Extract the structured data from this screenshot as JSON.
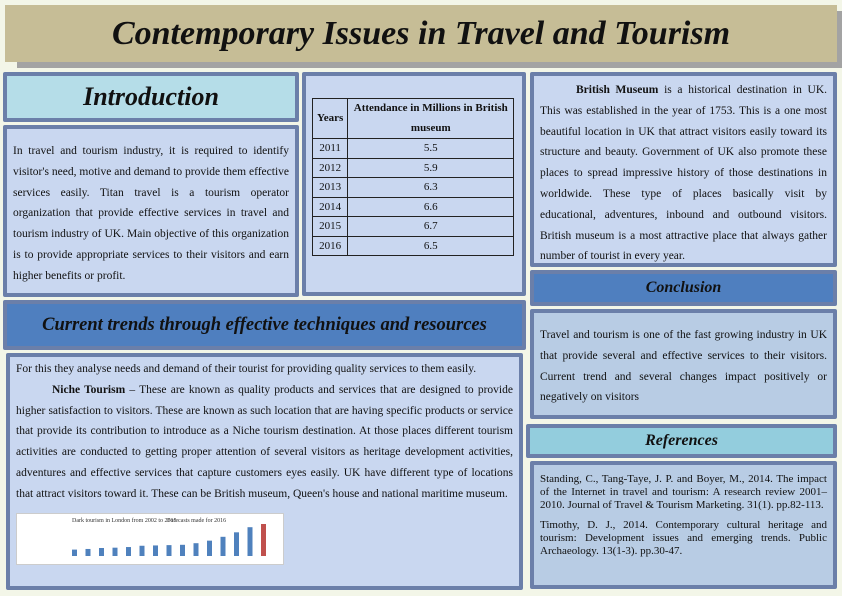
{
  "title": "Contemporary Issues in Travel and Tourism",
  "introduction": {
    "heading": "Introduction",
    "text": "In travel and tourism industry, it is required to identify visitor's need, motive and demand to provide them effective services easily. Titan travel is a tourism operator organization that provide effective services in travel and tourism industry of UK. Main objective of this organization is to provide appropriate services to their visitors and earn higher benefits or profit."
  },
  "table": {
    "headers": [
      "Years",
      "Attendance in Millions in British museum"
    ],
    "rows": [
      [
        "2011",
        "5.5"
      ],
      [
        "2012",
        "5.9"
      ],
      [
        "2013",
        "6.3"
      ],
      [
        "2014",
        "6.6"
      ],
      [
        "2015",
        "6.7"
      ],
      [
        "2016",
        "6.5"
      ]
    ]
  },
  "museum": {
    "bold": "British Museum",
    "text": " is a historical destination in UK. This was established in the year of 1753. This is a one most beautiful location in UK that attract visitors easily toward its structure and beauty. Government of UK also promote these places to spread impressive history of those destinations in worldwide. These type of places basically visit by educational, adventures, inbound and outbound visitors. British museum is a most attractive place that always gather number of tourist in every year."
  },
  "trends": {
    "heading": "Current trends through effective techniques and resources",
    "intro": "For this they analyse needs and demand of their tourist for providing quality services to them easily.",
    "bold": "Niche Tourism",
    "text": " – These are known as quality products and services that are designed to provide higher satisfaction to visitors. These are known as such location that are having specific products or service that provide its contribution to introduce as a Niche tourism destination. At those places different tourism activities are conducted to getting proper attention of several visitors as heritage development activities, adventures and effective services that capture customers eyes easily. UK have different type of locations that attract visitors toward it. These can be British museum, Queen's house and national maritime museum."
  },
  "chart_image": {
    "legend": [
      "Dark tourism in London from 2002 to 2015",
      "Forecasts made for 2016"
    ],
    "colors": [
      "#4f81bd",
      "#c0504d"
    ],
    "relative_values": [
      0.2,
      0.22,
      0.25,
      0.26,
      0.28,
      0.32,
      0.33,
      0.34,
      0.35,
      0.4,
      0.48,
      0.6,
      0.74,
      0.9,
      1.0
    ]
  },
  "conclusion": {
    "heading": "Conclusion",
    "text": "Travel and tourism is one of the fast growing industry in UK that provide several and effective services to their visitors. Current trend and several changes impact positively or negatively on visitors"
  },
  "references": {
    "heading": "References",
    "items": [
      "Standing, C., Tang-Taye, J. P. and Boyer, M., 2014. The impact of the Internet in travel and tourism: A research review 2001–2010. Journal of Travel & Tourism Marketing. 31(1). pp.82-113.",
      "Timothy, D. J., 2014. Contemporary cultural heritage and tourism: Development issues and emerging trends. Public Archaeology. 13(1-3). pp.30-47."
    ]
  }
}
